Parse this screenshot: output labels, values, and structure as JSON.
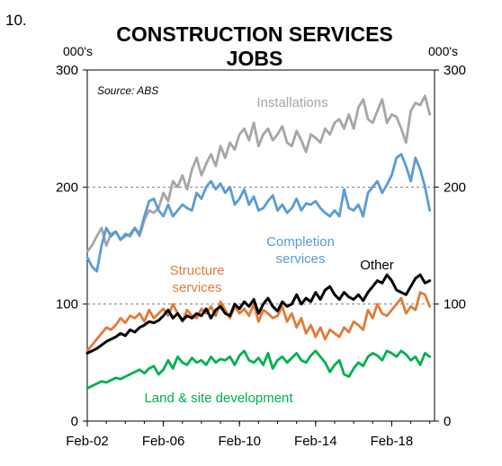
{
  "figure_number": "10.",
  "chart_data": {
    "type": "line",
    "title_lines": [
      "CONSTRUCTION SERVICES",
      "JOBS"
    ],
    "left_unit": "000's",
    "right_unit": "000's",
    "source": "Source: ABS",
    "ylim": [
      0,
      300
    ],
    "y_ticks": [
      0,
      100,
      200,
      300
    ],
    "y_tick_labels": [
      "0",
      "100",
      "200",
      "300"
    ],
    "x_start": 2002.125,
    "x_end": 2020.375,
    "x_tick_values": [
      2002.125,
      2006.125,
      2010.125,
      2014.125,
      2018.125
    ],
    "x_tick_labels": [
      "Feb-02",
      "Feb-06",
      "Feb-10",
      "Feb-14",
      "Feb-18"
    ],
    "gridlines_at": [
      100,
      200
    ],
    "grid": "dashed horizontal",
    "legend": "inline labels",
    "series": [
      {
        "name": "Installations",
        "color": "#a6a6a6",
        "label_text": [
          "Installations"
        ],
        "x": [
          2002.125,
          2002.375,
          2002.625,
          2002.875,
          2003.125,
          2003.375,
          2003.625,
          2003.875,
          2004.125,
          2004.375,
          2004.625,
          2004.875,
          2005.125,
          2005.375,
          2005.625,
          2005.875,
          2006.125,
          2006.375,
          2006.625,
          2006.875,
          2007.125,
          2007.375,
          2007.625,
          2007.875,
          2008.125,
          2008.375,
          2008.625,
          2008.875,
          2009.125,
          2009.375,
          2009.625,
          2009.875,
          2010.125,
          2010.375,
          2010.625,
          2010.875,
          2011.125,
          2011.375,
          2011.625,
          2011.875,
          2012.125,
          2012.375,
          2012.625,
          2012.875,
          2013.125,
          2013.375,
          2013.625,
          2013.875,
          2014.125,
          2014.375,
          2014.625,
          2014.875,
          2015.125,
          2015.375,
          2015.625,
          2015.875,
          2016.125,
          2016.375,
          2016.625,
          2016.875,
          2017.125,
          2017.375,
          2017.625,
          2017.875,
          2018.125,
          2018.375,
          2018.625,
          2018.875,
          2019.125,
          2019.375,
          2019.625,
          2019.875,
          2020.125
        ],
        "values": [
          145,
          150,
          158,
          165,
          150,
          160,
          162,
          155,
          158,
          160,
          165,
          158,
          172,
          180,
          178,
          182,
          195,
          188,
          205,
          200,
          210,
          198,
          215,
          225,
          210,
          220,
          228,
          218,
          235,
          225,
          238,
          232,
          245,
          250,
          240,
          255,
          235,
          245,
          250,
          240,
          245,
          252,
          238,
          235,
          248,
          240,
          230,
          245,
          242,
          238,
          250,
          245,
          255,
          258,
          250,
          262,
          250,
          268,
          275,
          258,
          255,
          265,
          275,
          255,
          262,
          260,
          250,
          238,
          265,
          272,
          270,
          278,
          262
        ]
      },
      {
        "name": "Completion services",
        "color": "#5b9bd5",
        "label_text": [
          "Completion",
          "services"
        ],
        "x": [
          2002.125,
          2002.375,
          2002.625,
          2002.875,
          2003.125,
          2003.375,
          2003.625,
          2003.875,
          2004.125,
          2004.375,
          2004.625,
          2004.875,
          2005.125,
          2005.375,
          2005.625,
          2005.875,
          2006.125,
          2006.375,
          2006.625,
          2006.875,
          2007.125,
          2007.375,
          2007.625,
          2007.875,
          2008.125,
          2008.375,
          2008.625,
          2008.875,
          2009.125,
          2009.375,
          2009.625,
          2009.875,
          2010.125,
          2010.375,
          2010.625,
          2010.875,
          2011.125,
          2011.375,
          2011.625,
          2011.875,
          2012.125,
          2012.375,
          2012.625,
          2012.875,
          2013.125,
          2013.375,
          2013.625,
          2013.875,
          2014.125,
          2014.375,
          2014.625,
          2014.875,
          2015.125,
          2015.375,
          2015.625,
          2015.875,
          2016.125,
          2016.375,
          2016.625,
          2016.875,
          2017.125,
          2017.375,
          2017.625,
          2017.875,
          2018.125,
          2018.375,
          2018.625,
          2018.875,
          2019.125,
          2019.375,
          2019.625,
          2019.875,
          2020.125
        ],
        "values": [
          140,
          132,
          128,
          150,
          165,
          158,
          162,
          155,
          160,
          158,
          165,
          160,
          175,
          188,
          190,
          180,
          175,
          185,
          175,
          180,
          185,
          182,
          180,
          195,
          190,
          200,
          205,
          198,
          203,
          195,
          200,
          185,
          190,
          198,
          185,
          192,
          180,
          182,
          188,
          193,
          180,
          185,
          178,
          182,
          190,
          180,
          186,
          185,
          188,
          182,
          178,
          175,
          180,
          175,
          198,
          182,
          180,
          185,
          175,
          195,
          200,
          205,
          195,
          202,
          210,
          225,
          228,
          218,
          205,
          225,
          215,
          200,
          180
        ]
      },
      {
        "name": "Structure services",
        "color": "#e07b39",
        "label_text": [
          "Structure",
          "services"
        ],
        "x": [
          2002.125,
          2002.375,
          2002.625,
          2002.875,
          2003.125,
          2003.375,
          2003.625,
          2003.875,
          2004.125,
          2004.375,
          2004.625,
          2004.875,
          2005.125,
          2005.375,
          2005.625,
          2005.875,
          2006.125,
          2006.375,
          2006.625,
          2006.875,
          2007.125,
          2007.375,
          2007.625,
          2007.875,
          2008.125,
          2008.375,
          2008.625,
          2008.875,
          2009.125,
          2009.375,
          2009.625,
          2009.875,
          2010.125,
          2010.375,
          2010.625,
          2010.875,
          2011.125,
          2011.375,
          2011.625,
          2011.875,
          2012.125,
          2012.375,
          2012.625,
          2012.875,
          2013.125,
          2013.375,
          2013.625,
          2013.875,
          2014.125,
          2014.375,
          2014.625,
          2014.875,
          2015.125,
          2015.375,
          2015.625,
          2015.875,
          2016.125,
          2016.375,
          2016.625,
          2016.875,
          2017.125,
          2017.375,
          2017.625,
          2017.875,
          2018.125,
          2018.375,
          2018.625,
          2018.875,
          2019.125,
          2019.375,
          2019.625,
          2019.875,
          2020.125
        ],
        "values": [
          60,
          65,
          70,
          75,
          80,
          78,
          82,
          88,
          84,
          90,
          88,
          92,
          85,
          95,
          88,
          92,
          96,
          90,
          100,
          92,
          85,
          95,
          90,
          88,
          96,
          92,
          98,
          90,
          102,
          95,
          88,
          98,
          92,
          96,
          90,
          100,
          85,
          95,
          92,
          88,
          90,
          98,
          85,
          92,
          80,
          88,
          75,
          82,
          72,
          80,
          70,
          78,
          75,
          72,
          80,
          76,
          85,
          82,
          78,
          95,
          88,
          100,
          92,
          90,
          95,
          100,
          105,
          92,
          98,
          95,
          110,
          108,
          98
        ]
      },
      {
        "name": "Other",
        "color": "#000000",
        "label_text": [
          "Other"
        ],
        "x": [
          2002.125,
          2002.375,
          2002.625,
          2002.875,
          2003.125,
          2003.375,
          2003.625,
          2003.875,
          2004.125,
          2004.375,
          2004.625,
          2004.875,
          2005.125,
          2005.375,
          2005.625,
          2005.875,
          2006.125,
          2006.375,
          2006.625,
          2006.875,
          2007.125,
          2007.375,
          2007.625,
          2007.875,
          2008.125,
          2008.375,
          2008.625,
          2008.875,
          2009.125,
          2009.375,
          2009.625,
          2009.875,
          2010.125,
          2010.375,
          2010.625,
          2010.875,
          2011.125,
          2011.375,
          2011.625,
          2011.875,
          2012.125,
          2012.375,
          2012.625,
          2012.875,
          2013.125,
          2013.375,
          2013.625,
          2013.875,
          2014.125,
          2014.375,
          2014.625,
          2014.875,
          2015.125,
          2015.375,
          2015.625,
          2015.875,
          2016.125,
          2016.375,
          2016.625,
          2016.875,
          2017.125,
          2017.375,
          2017.625,
          2017.875,
          2018.125,
          2018.375,
          2018.625,
          2018.875,
          2019.125,
          2019.375,
          2019.625,
          2019.875,
          2020.125
        ],
        "values": [
          58,
          60,
          62,
          65,
          68,
          70,
          72,
          75,
          73,
          78,
          76,
          80,
          82,
          85,
          84,
          86,
          90,
          95,
          88,
          92,
          86,
          90,
          88,
          92,
          90,
          96,
          88,
          95,
          98,
          92,
          90,
          100,
          96,
          102,
          98,
          104,
          92,
          100,
          105,
          98,
          94,
          102,
          98,
          100,
          108,
          100,
          105,
          102,
          110,
          104,
          112,
          115,
          108,
          104,
          110,
          106,
          104,
          108,
          103,
          110,
          115,
          120,
          118,
          125,
          120,
          112,
          110,
          108,
          115,
          122,
          125,
          118,
          120
        ]
      },
      {
        "name": "Land & site development",
        "color": "#00b050",
        "label_text": [
          "Land & site development"
        ],
        "x": [
          2002.125,
          2002.375,
          2002.625,
          2002.875,
          2003.125,
          2003.375,
          2003.625,
          2003.875,
          2004.125,
          2004.375,
          2004.625,
          2004.875,
          2005.125,
          2005.375,
          2005.625,
          2005.875,
          2006.125,
          2006.375,
          2006.625,
          2006.875,
          2007.125,
          2007.375,
          2007.625,
          2007.875,
          2008.125,
          2008.375,
          2008.625,
          2008.875,
          2009.125,
          2009.375,
          2009.625,
          2009.875,
          2010.125,
          2010.375,
          2010.625,
          2010.875,
          2011.125,
          2011.375,
          2011.625,
          2011.875,
          2012.125,
          2012.375,
          2012.625,
          2012.875,
          2013.125,
          2013.375,
          2013.625,
          2013.875,
          2014.125,
          2014.375,
          2014.625,
          2014.875,
          2015.125,
          2015.375,
          2015.625,
          2015.875,
          2016.125,
          2016.375,
          2016.625,
          2016.875,
          2017.125,
          2017.375,
          2017.625,
          2017.875,
          2018.125,
          2018.375,
          2018.625,
          2018.875,
          2019.125,
          2019.375,
          2019.625,
          2019.875,
          2020.125
        ],
        "values": [
          28,
          30,
          32,
          34,
          33,
          35,
          37,
          36,
          38,
          40,
          42,
          44,
          41,
          45,
          47,
          40,
          44,
          52,
          45,
          55,
          50,
          48,
          54,
          50,
          52,
          48,
          55,
          50,
          53,
          52,
          55,
          48,
          56,
          60,
          52,
          50,
          54,
          48,
          58,
          45,
          52,
          55,
          50,
          54,
          58,
          52,
          50,
          56,
          60,
          55,
          50,
          42,
          48,
          52,
          40,
          38,
          45,
          50,
          47,
          55,
          58,
          56,
          52,
          60,
          58,
          55,
          60,
          57,
          52,
          55,
          48,
          58,
          55
        ]
      }
    ]
  }
}
